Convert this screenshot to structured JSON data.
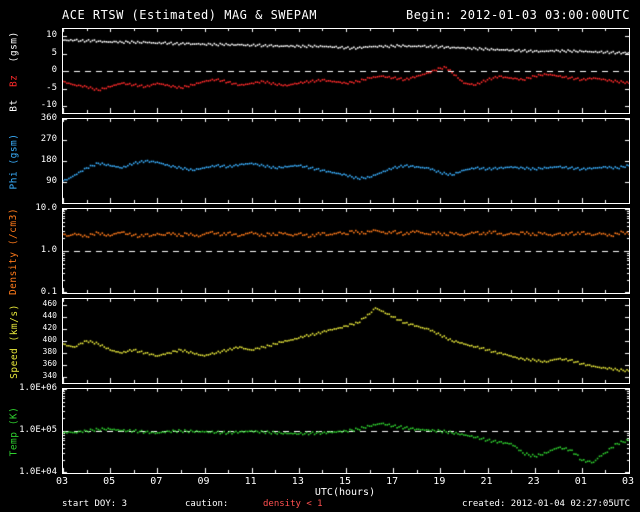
{
  "title": {
    "left": "ACE RTSW (Estimated) MAG & SWEPAM",
    "right": "Begin: 2012-01-03 03:00:00UTC"
  },
  "footer": {
    "start_doy_label": "start DOY:",
    "start_doy_value": "3",
    "caution_label": "caution:",
    "caution_value": "density < 1",
    "created": "created: 2012-01-04 02:27:05UTC"
  },
  "x_axis": {
    "label": "UTC(hours)"
  },
  "colors": {
    "white": "#ffffff",
    "red": "#ff2a2a",
    "cyan": "#3ab0ff",
    "orange": "#ff7a1a",
    "yellow": "#e8e83a",
    "green": "#2fd12f",
    "caution": "#ff5050",
    "background": "#000000"
  },
  "chart_data": {
    "type": "scatter",
    "x_range": [
      3,
      27
    ],
    "x": {
      "start": 3,
      "step": 0.25
    },
    "x_tick_hours": [
      3,
      5,
      7,
      9,
      11,
      13,
      15,
      17,
      19,
      21,
      23,
      25,
      27
    ],
    "x_tick_labels": [
      "03",
      "05",
      "07",
      "09",
      "11",
      "13",
      "15",
      "17",
      "19",
      "21",
      "23",
      "01",
      "03"
    ],
    "panels": [
      {
        "id": "bt_bz",
        "ylabel_bt": "Bt",
        "ylabel_bz": "Bz",
        "ylabel_unit": "(gsm)",
        "scale": "linear",
        "ylim": [
          -12,
          12
        ],
        "yticks": [
          10,
          5,
          0,
          -5,
          -10
        ],
        "ytick_labels": [
          "10",
          "5",
          "0",
          "-5",
          "-10"
        ],
        "dashed_at": 0,
        "series": [
          {
            "name": "Bz",
            "color": "#ff2a2a",
            "values": [
              -3.0,
              -3.5,
              -4.0,
              -4.2,
              -4.5,
              -5.0,
              -5.5,
              -5.0,
              -4.5,
              -4.0,
              -3.5,
              -3.8,
              -4.0,
              -4.2,
              -4.5,
              -4.0,
              -3.5,
              -3.8,
              -4.2,
              -4.5,
              -4.8,
              -4.4,
              -4.0,
              -3.5,
              -3.0,
              -2.7,
              -2.5,
              -2.8,
              -3.2,
              -3.6,
              -4.0,
              -3.8,
              -3.5,
              -3.2,
              -3.0,
              -3.4,
              -3.8,
              -4.0,
              -4.2,
              -3.8,
              -3.5,
              -3.2,
              -3.0,
              -2.8,
              -2.5,
              -2.8,
              -3.0,
              -3.2,
              -3.5,
              -3.2,
              -3.0,
              -2.5,
              -2.0,
              -1.8,
              -1.5,
              -1.8,
              -2.0,
              -2.2,
              -2.5,
              -2.0,
              -1.5,
              -1.0,
              -0.5,
              0.2,
              0.8,
              1.0,
              -0.5,
              -2.0,
              -3.5,
              -3.8,
              -4.0,
              -3.2,
              -2.5,
              -2.0,
              -1.5,
              -1.8,
              -2.0,
              -2.2,
              -2.5,
              -2.0,
              -1.5,
              -1.2,
              -1.0,
              -1.2,
              -1.5,
              -1.8,
              -2.0,
              -2.2,
              -2.5,
              -2.2,
              -2.0,
              -2.2,
              -2.5,
              -2.8,
              -3.0,
              -3.2,
              -3.5
            ]
          },
          {
            "name": "Bt",
            "color": "#ffffff",
            "values": [
              8.8,
              8.7,
              8.8,
              8.6,
              8.6,
              8.7,
              8.5,
              8.4,
              8.3,
              8.4,
              8.2,
              8.3,
              8.2,
              8.1,
              8.2,
              8.0,
              7.9,
              8.0,
              7.9,
              7.8,
              7.8,
              7.9,
              7.7,
              7.8,
              7.6,
              7.7,
              7.5,
              7.6,
              7.5,
              7.4,
              7.5,
              7.3,
              7.3,
              7.4,
              7.2,
              7.3,
              7.2,
              7.1,
              7.2,
              7.1,
              7.1,
              7.0,
              7.1,
              7.0,
              7.0,
              6.9,
              6.8,
              6.7,
              6.6,
              6.5,
              6.6,
              6.8,
              7.0,
              7.0,
              7.1,
              7.0,
              7.1,
              7.2,
              7.1,
              7.0,
              7.0,
              7.1,
              6.9,
              7.0,
              6.9,
              6.8,
              6.7,
              6.7,
              6.6,
              6.5,
              6.4,
              6.3,
              6.2,
              6.1,
              6.0,
              6.0,
              5.9,
              5.8,
              5.8,
              5.7,
              5.7,
              5.6,
              5.7,
              5.8,
              5.8,
              5.7,
              5.7,
              5.6,
              5.6,
              5.5,
              5.4,
              5.4,
              5.3,
              5.3,
              5.2,
              5.2,
              5.2
            ]
          }
        ]
      },
      {
        "id": "phi",
        "ylabel": "Phi (gsm)",
        "scale": "linear",
        "ylim": [
          0,
          360
        ],
        "yticks": [
          360,
          270,
          180,
          90
        ],
        "ytick_labels": [
          "360",
          "270",
          "180",
          "90"
        ],
        "dashed_at": null,
        "series": [
          {
            "name": "Phi",
            "color": "#3ab0ff",
            "values": [
              95,
              105,
              120,
              135,
              150,
              160,
              170,
              165,
              160,
              155,
              150,
              160,
              170,
              175,
              180,
              178,
              175,
              168,
              160,
              155,
              150,
              145,
              140,
              145,
              150,
              155,
              160,
              158,
              155,
              160,
              165,
              168,
              170,
              165,
              160,
              155,
              150,
              152,
              155,
              158,
              160,
              155,
              150,
              145,
              140,
              135,
              130,
              125,
              120,
              112,
              105,
              107,
              110,
              120,
              130,
              140,
              150,
              155,
              160,
              158,
              155,
              152,
              150,
              140,
              130,
              125,
              120,
              130,
              140,
              145,
              150,
              148,
              145,
              148,
              150,
              152,
              155,
              152,
              150,
              148,
              145,
              148,
              150,
              152,
              155,
              152,
              150,
              148,
              145,
              148,
              150,
              152,
              155,
              152,
              150,
              155,
              160
            ]
          }
        ]
      },
      {
        "id": "density",
        "ylabel": "Density (/cm3)",
        "scale": "log",
        "ylim": [
          0.1,
          10
        ],
        "yticks": [
          10,
          1,
          0.1
        ],
        "ytick_labels": [
          "10.0",
          "1.0",
          "0.1"
        ],
        "dashed_at": 1,
        "series": [
          {
            "name": "Density",
            "color": "#ff7a1a",
            "values": [
              2.5,
              2.3,
              2.6,
              2.4,
              2.2,
              2.5,
              2.7,
              2.4,
              2.3,
              2.6,
              2.8,
              2.5,
              2.4,
              2.2,
              2.5,
              2.3,
              2.6,
              2.4,
              2.7,
              2.5,
              2.3,
              2.6,
              2.4,
              2.2,
              2.5,
              2.8,
              2.6,
              2.4,
              2.7,
              2.5,
              2.3,
              2.6,
              2.8,
              2.5,
              2.3,
              2.6,
              2.4,
              2.7,
              2.5,
              2.3,
              2.6,
              2.4,
              2.2,
              2.5,
              2.7,
              2.4,
              2.6,
              2.8,
              2.5,
              3.0,
              2.8,
              2.6,
              2.9,
              3.1,
              2.8,
              2.6,
              2.9,
              2.7,
              2.5,
              2.8,
              3.0,
              2.7,
              2.5,
              2.8,
              2.6,
              2.4,
              2.7,
              2.5,
              2.3,
              2.6,
              2.8,
              2.5,
              2.7,
              2.9,
              2.6,
              2.4,
              2.7,
              2.5,
              2.8,
              2.6,
              2.4,
              2.7,
              2.5,
              2.3,
              2.6,
              2.4,
              2.7,
              2.5,
              2.8,
              2.6,
              2.4,
              2.7,
              2.5,
              2.3,
              2.6,
              2.8,
              2.5
            ]
          }
        ]
      },
      {
        "id": "speed",
        "ylabel": "Speed (km/s)",
        "scale": "linear",
        "ylim": [
          330,
          470
        ],
        "yticks": [
          460,
          440,
          420,
          400,
          380,
          360,
          340
        ],
        "ytick_labels": [
          "460",
          "440",
          "420",
          "400",
          "380",
          "360",
          "340"
        ],
        "dashed_at": null,
        "series": [
          {
            "name": "Speed",
            "color": "#e8e83a",
            "values": [
              395,
              392,
              390,
              396,
              400,
              398,
              395,
              390,
              385,
              382,
              380,
              383,
              385,
              382,
              380,
              378,
              375,
              378,
              380,
              383,
              385,
              382,
              380,
              377,
              375,
              378,
              380,
              383,
              385,
              388,
              390,
              387,
              385,
              388,
              390,
              392,
              395,
              398,
              400,
              402,
              405,
              408,
              410,
              412,
              415,
              418,
              420,
              422,
              425,
              428,
              430,
              438,
              445,
              455,
              450,
              445,
              440,
              435,
              430,
              428,
              425,
              422,
              420,
              415,
              410,
              405,
              400,
              398,
              395,
              392,
              390,
              388,
              385,
              382,
              380,
              378,
              375,
              372,
              370,
              369,
              368,
              366,
              365,
              368,
              370,
              369,
              368,
              365,
              362,
              360,
              358,
              356,
              355,
              354,
              352,
              351,
              350
            ]
          }
        ]
      },
      {
        "id": "temp",
        "ylabel": "Temp (K)",
        "scale": "log",
        "ylim": [
          10000,
          1000000
        ],
        "yticks": [
          1000000,
          100000,
          10000
        ],
        "ytick_labels": [
          "1.0E+06",
          "1.0E+05",
          "1.0E+04"
        ],
        "dashed_at": 100000,
        "series": [
          {
            "name": "Temp",
            "color": "#2fd12f",
            "values": [
              90000,
              95000,
              92000,
              98000,
              100000,
              105000,
              108000,
              110000,
              110000,
              105000,
              102000,
              100000,
              100000,
              97000,
              95000,
              92000,
              90000,
              95000,
              98000,
              100000,
              100000,
              98000,
              97000,
              96000,
              95000,
              93000,
              92000,
              91000,
              90000,
              93000,
              96000,
              98000,
              100000,
              97000,
              95000,
              92000,
              90000,
              88000,
              87000,
              86000,
              85000,
              86000,
              88000,
              89000,
              90000,
              93000,
              95000,
              98000,
              100000,
              105000,
              110000,
              120000,
              130000,
              140000,
              150000,
              140000,
              130000,
              125000,
              120000,
              115000,
              110000,
              108000,
              105000,
              102000,
              100000,
              95000,
              90000,
              85000,
              80000,
              75000,
              70000,
              65000,
              60000,
              57000,
              55000,
              52000,
              50000,
              40000,
              30000,
              27000,
              25000,
              27000,
              30000,
              35000,
              40000,
              38000,
              35000,
              28000,
              20000,
              19000,
              18000,
              25000,
              30000,
              40000,
              50000,
              55000,
              60000
            ]
          }
        ]
      }
    ]
  }
}
